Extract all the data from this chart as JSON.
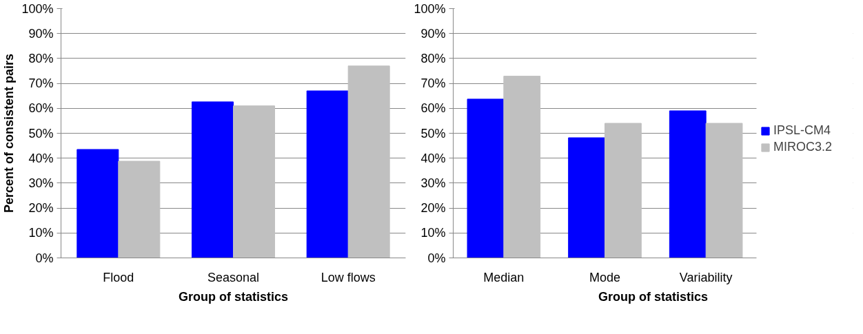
{
  "chart_data": [
    {
      "type": "bar",
      "categories": [
        "Flood",
        "Seasonal",
        "Low flows"
      ],
      "xlabel": "Group of statistics",
      "ylabel": "Percent of consistent pairs",
      "series": [
        {
          "color": "#0000ff",
          "values": [
            43.5,
            62.6,
            67
          ]
        },
        {
          "color": "#c0c0c0",
          "values": [
            38.8,
            61,
            77
          ]
        }
      ],
      "ylim": [
        0,
        100
      ],
      "yticks": [
        {
          "value": 0,
          "label": "0%"
        },
        {
          "value": 10,
          "label": "10%"
        },
        {
          "value": 20,
          "label": "20%"
        },
        {
          "value": 30,
          "label": "30%"
        },
        {
          "value": 40,
          "label": "40%"
        },
        {
          "value": 50,
          "label": "50%"
        },
        {
          "value": 60,
          "label": "60%"
        },
        {
          "value": 70,
          "label": "70%"
        },
        {
          "value": 80,
          "label": "80%"
        },
        {
          "value": 90,
          "label": "90%"
        },
        {
          "value": 100,
          "label": "100%"
        }
      ],
      "grid": "y"
    },
    {
      "type": "bar",
      "categories": [
        "Median",
        "Mode",
        "Variability"
      ],
      "xlabel": "Group of statistics",
      "series": [
        {
          "name": "IPSL-CM4",
          "color": "#0000ff",
          "values": [
            63.7,
            48.2,
            59
          ]
        },
        {
          "name": "MIROC3.2",
          "color": "#c0c0c0",
          "values": [
            72.9,
            54,
            54
          ]
        }
      ],
      "ylim": [
        0,
        100
      ],
      "yticks": [
        {
          "value": 0,
          "label": "0%"
        },
        {
          "value": 10,
          "label": "10%"
        },
        {
          "value": 20,
          "label": "20%"
        },
        {
          "value": 30,
          "label": "30%"
        },
        {
          "value": 40,
          "label": "40%"
        },
        {
          "value": 50,
          "label": "50%"
        },
        {
          "value": 60,
          "label": "60%"
        },
        {
          "value": 70,
          "label": "70%"
        },
        {
          "value": 80,
          "label": "80%"
        },
        {
          "value": 90,
          "label": "90%"
        },
        {
          "value": 100,
          "label": "100%"
        }
      ],
      "grid": "y",
      "legend": "right"
    }
  ]
}
